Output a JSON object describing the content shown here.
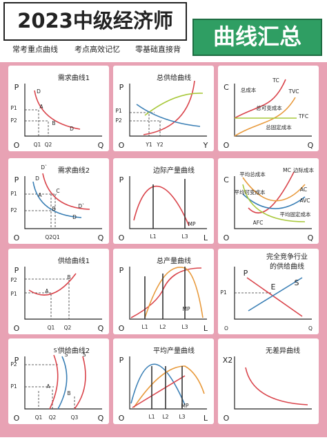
{
  "header": {
    "title": "2023中级经济师",
    "badge": "曲线汇总",
    "taglines": [
      "常考重点曲线",
      "考点高效记忆",
      "零基础直接背"
    ]
  },
  "panels": [
    {
      "title": [
        "需求曲线1"
      ],
      "labels": [
        "P",
        "O",
        "Q",
        "D",
        "A",
        "B",
        "D",
        "P1",
        "P2",
        "Q1",
        "Q2"
      ]
    },
    {
      "title": [
        "总供给曲线"
      ],
      "labels": [
        "P",
        "O",
        "Y",
        "P1",
        "P2",
        "Y1",
        "Y2"
      ]
    },
    {
      "title": [],
      "labels": [
        "C",
        "O",
        "Q",
        "TC",
        "TVC",
        "总成本",
        "总可变成本",
        "TFC",
        "总固定成本"
      ]
    },
    {
      "title": [
        "需求曲线2"
      ],
      "labels": [
        "P",
        "O",
        "Q",
        "D`",
        "D",
        "A",
        "C",
        "B",
        "D`",
        "D",
        "P1",
        "P2",
        "Q2Q1"
      ]
    },
    {
      "title": [
        "边际产量曲线"
      ],
      "labels": [
        "P",
        "O",
        "L",
        "L1",
        "L3",
        "MP"
      ]
    },
    {
      "title": [],
      "labels": [
        "C",
        "O",
        "Q",
        "MC",
        "边际成本",
        "平均总成本",
        "AC",
        "平均可变成本",
        "AVC",
        "平均固定成本",
        "AFC"
      ]
    },
    {
      "title": [
        "供给曲线1"
      ],
      "labels": [
        "P",
        "O",
        "Q",
        "P2",
        "P1",
        "A",
        "B",
        "Q1",
        "Q2"
      ]
    },
    {
      "title": [
        "总产量曲线"
      ],
      "labels": [
        "P",
        "O",
        "L",
        "MP",
        "L1",
        "L2",
        "L3"
      ]
    },
    {
      "title": [
        "完全竞争行业",
        "的供给曲线"
      ],
      "labels": [
        "P",
        "S",
        "E",
        "P1",
        "O",
        "Q"
      ]
    },
    {
      "title": [
        "供给曲线2"
      ],
      "labels": [
        "P",
        "O",
        "Q",
        "S`",
        "S",
        "S`",
        "P2",
        "P1",
        "A",
        "B",
        "Q1",
        "Q2",
        "Q3"
      ]
    },
    {
      "title": [
        "平均产量曲线"
      ],
      "labels": [
        "P",
        "O",
        "L",
        "MP",
        "L1",
        "L2",
        "L3"
      ]
    },
    {
      "title": [
        "无差异曲线"
      ],
      "labels": [
        "X2",
        "O"
      ]
    }
  ]
}
